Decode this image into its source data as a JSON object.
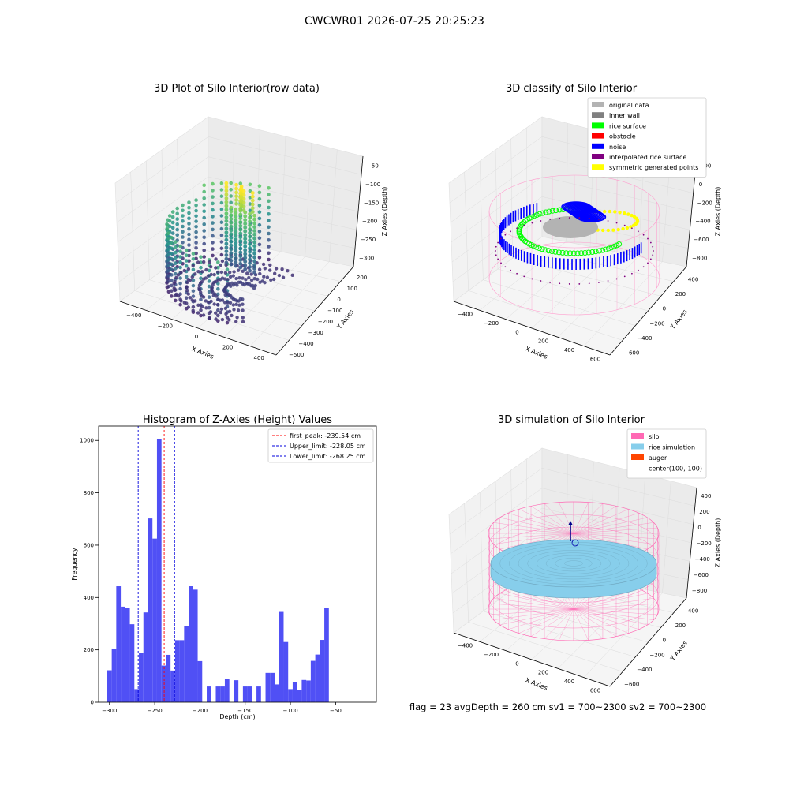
{
  "suptitle": "CWCWR01 2026-07-25 20:25:23",
  "footer": "flag = 23   avgDepth = 260 cm  sv1 = 700~2300  sv2 = 700~2300",
  "colors": {
    "histogram_bar": "#5050f5",
    "first_peak_line": "#ff0000",
    "limit_line": "#0000dd",
    "silo": "#ff69b4",
    "rice_simulation": "#87ceeb",
    "auger": "#ff4500",
    "center": "#ffffff",
    "original_data": "#b3b3b3",
    "inner_wall": "#808080",
    "rice_surface": "#00ff00",
    "obstacle": "#ff0000",
    "noise": "#0000ff",
    "interpolated_rice_surface": "#800080",
    "symmetric_generated_points": "#ffff00"
  },
  "chart_data": [
    {
      "id": "raw",
      "type": "scatter",
      "projection": "3d",
      "title": "3D Plot of Silo Interior(row data)",
      "xlabel": "X Axies",
      "ylabel": "Y Axies",
      "zlabel": "Z Axies (Depth)",
      "colormap": "viridis",
      "x_ticks": [
        "−400",
        "−200",
        "0",
        "200",
        "400"
      ],
      "y_ticks": [
        "−500",
        "−400",
        "−300",
        "−200",
        "−100",
        "0",
        "100",
        "200"
      ],
      "z_ticks": [
        "−300",
        "−250",
        "−200",
        "−150",
        "−100",
        "−50"
      ],
      "xlim": [
        -500,
        500
      ],
      "ylim": [
        -550,
        250
      ],
      "zlim": [
        -320,
        -20
      ],
      "grid": true
    },
    {
      "id": "classify",
      "type": "scatter",
      "projection": "3d",
      "title": "3D classify of Silo Interior",
      "xlabel": "X Axies",
      "ylabel": "Y Axies",
      "zlabel": "Z Axies (Depth)",
      "x_ticks": [
        "−400",
        "−200",
        "0",
        "200",
        "400",
        "600"
      ],
      "y_ticks": [
        "−600",
        "−400",
        "−200",
        "0",
        "200",
        "400"
      ],
      "z_ticks": [
        "−800",
        "−600",
        "−400",
        "−200",
        "0",
        "200"
      ],
      "legend": {
        "position": "upper-right",
        "entries": [
          {
            "label": "original data",
            "color": "#b3b3b3"
          },
          {
            "label": "inner wall",
            "color": "#808080"
          },
          {
            "label": "rice surface",
            "color": "#00ff00"
          },
          {
            "label": "obstacle",
            "color": "#ff0000"
          },
          {
            "label": "noise",
            "color": "#0000ff"
          },
          {
            "label": "interpolated rice surface",
            "color": "#800080"
          },
          {
            "label": "symmetric generated points",
            "color": "#ffff00"
          }
        ]
      },
      "grid": true
    },
    {
      "id": "histogram",
      "type": "bar",
      "title": "Histogram of Z-Axies (Height) Values",
      "xlabel": "Depth (cm)",
      "ylabel": "Frequency",
      "xlim": [
        -312,
        -5
      ],
      "ylim": [
        0,
        1055
      ],
      "x_ticks": [
        -300,
        -250,
        -200,
        -150,
        -100,
        -50
      ],
      "x_tick_labels": [
        "−300",
        "−250",
        "−200",
        "−150",
        "−100",
        "−50"
      ],
      "y_ticks": [
        0,
        200,
        400,
        600,
        800,
        1000
      ],
      "bin_start": -302.5,
      "bin_width": 5.0,
      "values": [
        122,
        205,
        443,
        365,
        360,
        298,
        50,
        188,
        343,
        702,
        625,
        1005,
        140,
        181,
        121,
        237,
        237,
        290,
        443,
        430,
        157,
        0,
        60,
        0,
        60,
        60,
        88,
        0,
        84,
        0,
        60,
        60,
        0,
        60,
        0,
        112,
        112,
        68,
        345,
        230,
        50,
        78,
        48,
        85,
        83,
        158,
        182,
        238,
        360
      ],
      "vlines": [
        {
          "label": "first_peak: -239.54 cm",
          "x": -239.54,
          "color": "#ff0000"
        },
        {
          "label": "Upper_limit: -228.05 cm",
          "x": -228.05,
          "color": "#0000dd"
        },
        {
          "label": "Lower_limit: -268.25 cm",
          "x": -268.25,
          "color": "#0000dd"
        }
      ],
      "legend": {
        "position": "upper-right"
      }
    },
    {
      "id": "simulation",
      "type": "surface",
      "projection": "3d",
      "title": "3D simulation of Silo Interior",
      "xlabel": "X Axies",
      "ylabel": "Y Axies",
      "zlabel": "Z Axies (Depth)",
      "x_ticks": [
        "−400",
        "−200",
        "0",
        "200",
        "400",
        "600"
      ],
      "y_ticks": [
        "−600",
        "−400",
        "−200",
        "0",
        "200",
        "400"
      ],
      "z_ticks": [
        "−800",
        "−600",
        "−400",
        "−200",
        "0",
        "200",
        "400"
      ],
      "legend": {
        "position": "upper-right",
        "entries": [
          {
            "label": "silo",
            "color": "#ff69b4"
          },
          {
            "label": "rice simulation",
            "color": "#87ceeb"
          },
          {
            "label": "auger",
            "color": "#ff4500"
          },
          {
            "label": "center(100,-100)",
            "color": "#ffffff"
          }
        ]
      },
      "grid": true
    }
  ]
}
